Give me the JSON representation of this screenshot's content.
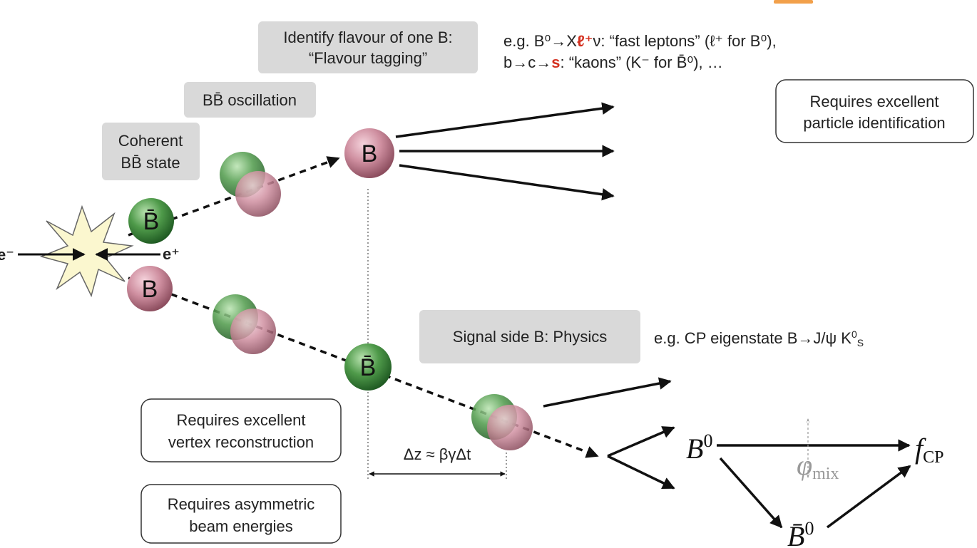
{
  "labels": {
    "flavour_tagging": [
      "Identify flavour of one B:",
      "“Flavour tagging”"
    ],
    "oscillation": "BB̄ oscillation",
    "coherent": [
      "Coherent",
      "BB̄ state"
    ],
    "signal_side": "Signal side B: Physics",
    "particle_id": [
      "Requires excellent",
      "particle identification"
    ],
    "vertex": [
      "Requires excellent",
      "vertex reconstruction"
    ],
    "asymmetric": [
      "Requires asymmetric",
      "beam energies"
    ],
    "delta_z": "Δz ≈ βγΔt",
    "electron": "e⁻",
    "positron": "e⁺"
  },
  "annotations": {
    "tag_line1": [
      "e.g. B⁰→X",
      "ℓ⁺",
      "ν: “fast leptons” (ℓ⁺ for B⁰),"
    ],
    "tag_line2": [
      "b→c→",
      "s",
      ": “kaons” (K⁻ for B̄⁰), …"
    ],
    "cp": [
      "e.g. CP eigenstate B→J/ψ K",
      "0",
      "S"
    ]
  },
  "particles": [
    "B̄",
    "B",
    "B",
    "B̄"
  ],
  "math": {
    "b0": {
      "base": "B",
      "sup": "0"
    },
    "fcp": {
      "base": "f",
      "sub": "CP"
    },
    "phi": {
      "base": "φ",
      "sub": "mix"
    },
    "b0bar": {
      "base": "B̄",
      "sup": "0"
    }
  }
}
